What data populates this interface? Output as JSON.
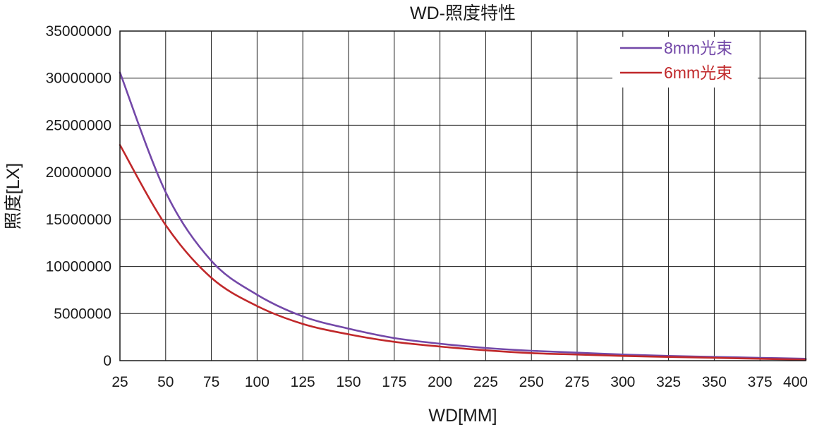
{
  "chart_data": {
    "type": "line",
    "title": "WD-照度特性",
    "xlabel": "WD[MM]",
    "ylabel": "照度[LX]",
    "xlim": [
      25,
      400
    ],
    "ylim": [
      0,
      35000000
    ],
    "x_ticks": [
      "25",
      "50",
      "75",
      "100",
      "125",
      "150",
      "175",
      "200",
      "225",
      "250",
      "275",
      "300",
      "325",
      "350",
      "375",
      "400"
    ],
    "y_ticks": [
      "0",
      "5000000",
      "10000000",
      "15000000",
      "20000000",
      "25000000",
      "30000000",
      "35000000"
    ],
    "grid": true,
    "legend_position": "top-right",
    "x": [
      25,
      50,
      75,
      100,
      125,
      150,
      175,
      200,
      225,
      250,
      275,
      300,
      325,
      350,
      375,
      400
    ],
    "series": [
      {
        "name": "8mm光束",
        "color": "#7348a8",
        "values": [
          30600000,
          17900000,
          10600000,
          7000000,
          4700000,
          3400000,
          2400000,
          1800000,
          1350000,
          1050000,
          850000,
          650000,
          500000,
          400000,
          300000,
          200000
        ]
      },
      {
        "name": "6mm光束",
        "color": "#c0282a",
        "values": [
          22900000,
          14400000,
          8800000,
          5800000,
          3900000,
          2800000,
          2000000,
          1500000,
          1100000,
          800000,
          650000,
          500000,
          400000,
          300000,
          200000,
          100000
        ]
      }
    ]
  }
}
